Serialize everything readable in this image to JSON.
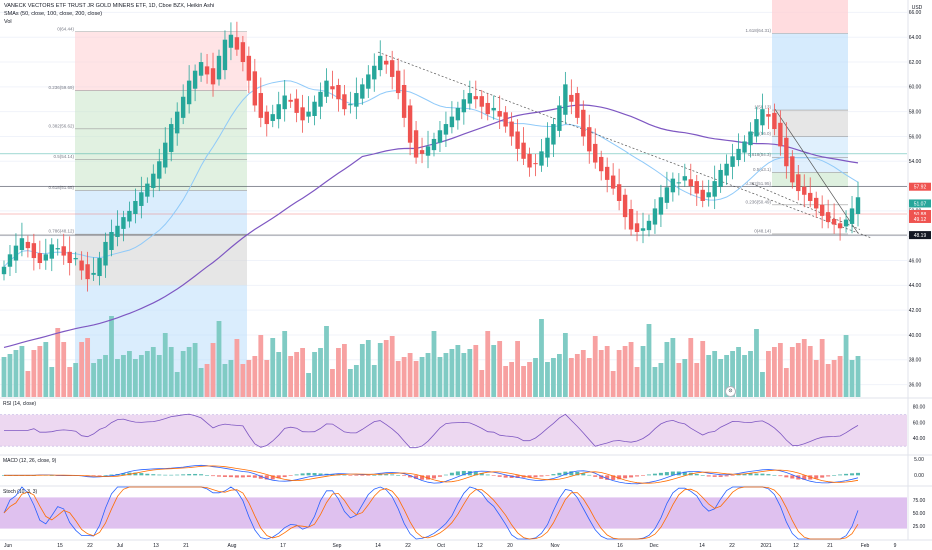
{
  "header": {
    "title": "VANECK VECTORS ETF TRUST JR GOLD MINERS ETF, 1D, Cboe BZX, Heikin Ashi",
    "smas": "SMAs (50, close, 100, close, 200, close)",
    "vol": "Vol"
  },
  "panes": {
    "rsi_label": "RSI (14, close)",
    "macd_label": "MACD (12, 26, close, 9)",
    "stoch_label": "Stoch (10, 3, 3)"
  },
  "cursor_icon": "cursor-circle-icon",
  "colors": {
    "up": "#26a69a",
    "down": "#ef5350",
    "vol_up": "#80cbc4",
    "vol_down": "#f7a1a1",
    "sma50": "#90caf9",
    "sma200": "#7e57c2",
    "rsi_band": "#e1bee7",
    "stoch_band": "#d1a7e8",
    "fib_red": "#ffcdd2",
    "fib_green": "#c8e6c9",
    "fib_blue": "#bbdefb",
    "fib_grey": "#d6d6d6"
  },
  "chart_data": {
    "type": "candlestick",
    "price_axis": {
      "unit": "USD",
      "ticks": [
        "66.00",
        "64.00",
        "62.00",
        "60.00",
        "58.00",
        "56.00",
        "54.00",
        "52.00",
        "50.00",
        "48.00",
        "46.00",
        "44.00",
        "42.00",
        "40.00",
        "38.00",
        "36.00"
      ],
      "ylim": [
        35,
        67
      ]
    },
    "rsi_axis": {
      "ticks": [
        "80.00",
        "60.00",
        "40.00"
      ],
      "ylim": [
        20,
        90
      ]
    },
    "macd_axis": {
      "ticks": [
        "5.00",
        "0.00"
      ],
      "ylim": [
        -3,
        6
      ]
    },
    "stoch_axis": {
      "ticks": [
        "75.00",
        "50.00",
        "25.00"
      ],
      "ylim": [
        0,
        100
      ]
    },
    "time_axis": [
      "Jun",
      "15",
      "22",
      "Jul",
      "13",
      "21",
      "Aug",
      "17",
      "Sep",
      "14",
      "22",
      "Oct",
      "12",
      "20",
      "Nov",
      "16",
      "Dec",
      "14",
      "22",
      "2021",
      "12",
      "21",
      "Feb",
      "9"
    ],
    "price_labels": [
      {
        "label": "57.92",
        "value": 51.95,
        "color": "#ef5350"
      },
      {
        "label": "51.07",
        "value": 50.6,
        "color": "#26a69a"
      },
      {
        "label": "50.88",
        "value": 49.75,
        "color": "#ef5350"
      },
      {
        "label": "49.12",
        "value": 49.35,
        "color": "#ef5350"
      },
      {
        "label": "48.19",
        "value": 48.05,
        "color": "#131722"
      }
    ],
    "fib_left": [
      {
        "label": "0(64.44)",
        "value": 64.44
      },
      {
        "label": "0.236(59.69)",
        "value": 59.69
      },
      {
        "label": "0.382(56.62)",
        "value": 56.62
      },
      {
        "label": "0.5(54.14)",
        "value": 54.14
      },
      {
        "label": "0.618(51.65)",
        "value": 51.65
      },
      {
        "label": "0.786(48.12)",
        "value": 48.12
      }
    ],
    "fib_right": [
      {
        "label": "1.618(64.31)",
        "value": 64.31
      },
      {
        "label": "1(58.13)",
        "value": 58.13
      },
      {
        "label": "0.786(56.0)",
        "value": 56.0
      },
      {
        "label": "0.618(54.3)",
        "value": 54.3
      },
      {
        "label": "0.5(53.1)",
        "value": 53.1
      },
      {
        "label": "0.382(51.95)",
        "value": 51.95
      },
      {
        "label": "0.236(50.49)",
        "value": 50.49
      },
      {
        "label": "0(48.14)",
        "value": 48.14
      }
    ],
    "series_close": [
      45.5,
      46.5,
      47.2,
      47.8,
      47.0,
      46.2,
      45.8,
      46.5,
      47.3,
      47.0,
      46.4,
      45.8,
      46.2,
      45.2,
      44.5,
      45.0,
      46.2,
      47.5,
      48.3,
      48.8,
      49.5,
      50.0,
      50.8,
      51.5,
      52.2,
      53.0,
      54.0,
      55.5,
      57.0,
      58.0,
      59.2,
      60.5,
      61.3,
      62.0,
      61.0,
      60.2,
      62.5,
      63.8,
      64.2,
      63.0,
      62.0,
      60.5,
      58.5,
      57.5,
      57.0,
      57.8,
      58.6,
      59.3,
      58.8,
      57.9,
      57.3,
      58.0,
      58.8,
      59.6,
      60.5,
      59.8,
      59.0,
      58.2,
      58.6,
      59.5,
      60.2,
      61.0,
      61.7,
      62.5,
      61.8,
      60.8,
      59.5,
      57.5,
      55.5,
      54.3,
      54.6,
      55.2,
      55.8,
      56.5,
      57.0,
      57.6,
      58.3,
      59.0,
      59.5,
      59.0,
      58.4,
      57.8,
      58.3,
      57.6,
      56.8,
      56.0,
      55.0,
      54.2,
      53.5,
      53.8,
      54.8,
      55.9,
      57.0,
      58.5,
      60.2,
      58.8,
      57.5,
      56.0,
      54.8,
      53.9,
      53.2,
      52.5,
      51.8,
      50.8,
      49.5,
      48.5,
      48.3,
      48.6,
      49.2,
      50.2,
      51.1,
      51.9,
      52.6,
      52.3,
      52.8,
      52.0,
      51.4,
      50.8,
      51.5,
      52.4,
      53.3,
      53.8,
      54.4,
      55.0,
      55.6,
      56.4,
      57.4,
      58.2,
      57.6,
      56.6,
      55.2,
      53.6,
      52.3,
      51.6,
      51.3,
      50.8,
      50.2,
      49.6,
      49.1,
      48.9,
      48.6,
      49.3,
      50.2,
      51.1
    ]
  }
}
